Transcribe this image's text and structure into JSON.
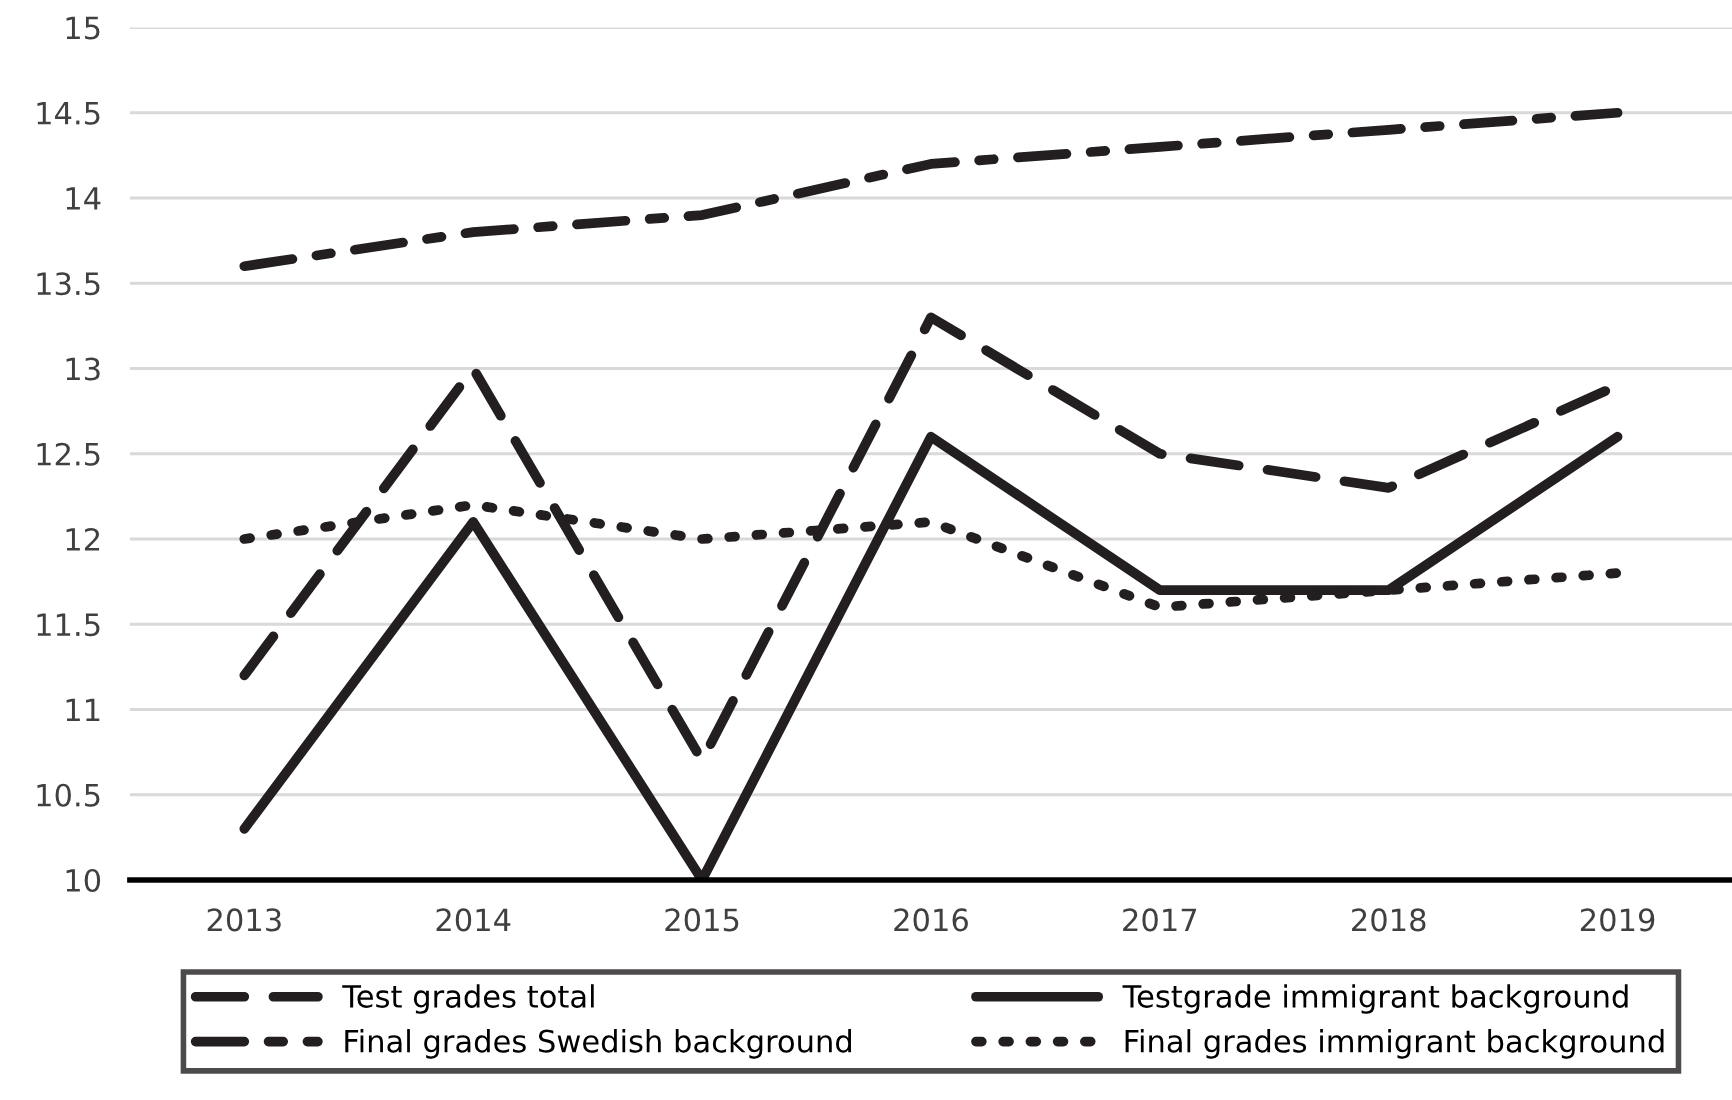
{
  "chart_data": {
    "type": "line",
    "categories": [
      "2013",
      "2014",
      "2015",
      "2016",
      "2017",
      "2018",
      "2019"
    ],
    "series": [
      {
        "name": "Test grades total",
        "color": "#231f20",
        "line_style": "dashed",
        "values": [
          11.2,
          13.0,
          10.7,
          13.3,
          12.5,
          12.3,
          12.9
        ]
      },
      {
        "name": "Final grades Swedish background",
        "color": "#231f20",
        "line_style": "dashdot",
        "values": [
          13.6,
          13.8,
          13.9,
          14.2,
          14.3,
          14.4,
          14.5
        ]
      },
      {
        "name": "Testgrade immigrant background",
        "color": "#231f20",
        "line_style": "solid",
        "values": [
          10.3,
          12.1,
          10.0,
          12.6,
          11.7,
          11.7,
          12.6
        ]
      },
      {
        "name": "Final grades immigrant background",
        "color": "#231f20",
        "line_style": "dotted",
        "values": [
          12.0,
          12.2,
          12.0,
          12.1,
          11.6,
          11.7,
          11.8
        ]
      }
    ],
    "ylim": [
      10,
      15
    ],
    "yticks": [
      10,
      10.5,
      11,
      11.5,
      12,
      12.5,
      13,
      13.5,
      14,
      14.5,
      15
    ],
    "grid": "y",
    "legend": "bottom",
    "marker": "none"
  }
}
